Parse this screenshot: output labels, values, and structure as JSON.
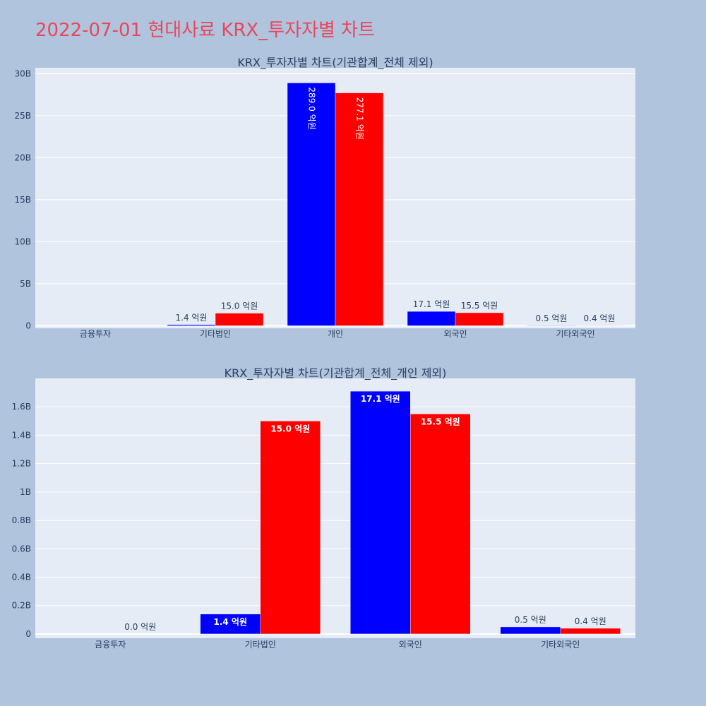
{
  "page_title": "2022-07-01 현대사료 KRX_투자자별 차트",
  "colors": {
    "background": "#b0c4de",
    "plot_bg": "#e5ecf6",
    "series_1": "#0000ff",
    "series_2": "#ff0000",
    "title": "#e8475b"
  },
  "chart_data": [
    {
      "type": "bar",
      "title": "KRX_투자자별 차트(기관합계_전체 제외)",
      "categories": [
        "금융투자",
        "기타법인",
        "개인",
        "외국인",
        "기타외국인"
      ],
      "series": [
        {
          "values": [
            0,
            140000000,
            28900000000,
            1710000000,
            50000000
          ],
          "labels": [
            "",
            "1.4 억원",
            "289.0 억원",
            "17.1 억원",
            "0.5 억원"
          ]
        },
        {
          "values": [
            0,
            1500000000,
            27710000000,
            1550000000,
            40000000
          ],
          "labels": [
            "",
            "15.0 억원",
            "277.1 억원",
            "15.5 억원",
            "0.4 억원"
          ]
        }
      ],
      "y_ticks": [
        {
          "value": 0,
          "label": "0"
        },
        {
          "value": 5000000000,
          "label": "5B"
        },
        {
          "value": 10000000000,
          "label": "10B"
        },
        {
          "value": 15000000000,
          "label": "15B"
        },
        {
          "value": 20000000000,
          "label": "20B"
        },
        {
          "value": 25000000000,
          "label": "25B"
        },
        {
          "value": 30000000000,
          "label": "30B"
        }
      ],
      "ylim": [
        -300000000,
        30700000000
      ],
      "grid": true
    },
    {
      "type": "bar",
      "title": "KRX_투자자별 차트(기관합계_전체_개인 제외)",
      "categories": [
        "금융투자",
        "기타법인",
        "외국인",
        "기타외국인"
      ],
      "series": [
        {
          "values": [
            0,
            140000000,
            1710000000,
            50000000
          ],
          "labels": [
            "",
            "1.4 억원",
            "17.1 억원",
            "0.5 억원"
          ]
        },
        {
          "values": [
            0,
            1500000000,
            1550000000,
            40000000
          ],
          "labels": [
            "0.0 억원",
            "15.0 억원",
            "15.5 억원",
            "0.4 억원"
          ]
        }
      ],
      "y_ticks": [
        {
          "value": 0,
          "label": "0"
        },
        {
          "value": 200000000,
          "label": "0.2B"
        },
        {
          "value": 400000000,
          "label": "0.4B"
        },
        {
          "value": 600000000,
          "label": "0.6B"
        },
        {
          "value": 800000000,
          "label": "0.8B"
        },
        {
          "value": 1000000000,
          "label": "1B"
        },
        {
          "value": 1200000000,
          "label": "1.2B"
        },
        {
          "value": 1400000000,
          "label": "1.4B"
        },
        {
          "value": 1600000000,
          "label": "1.6B"
        }
      ],
      "ylim": [
        -30000000,
        1800000000
      ],
      "grid": true
    }
  ]
}
